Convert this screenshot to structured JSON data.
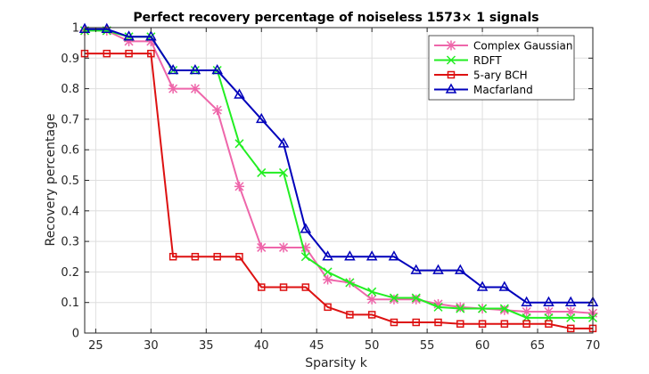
{
  "chart_data": {
    "type": "line",
    "title": "Perfect recovery percentage of noiseless 1573× 1 signals",
    "xlabel": "Sparsity k",
    "ylabel": "Recovery percentage",
    "xlim": [
      24,
      70
    ],
    "ylim": [
      0,
      1
    ],
    "xticks": [
      25,
      30,
      35,
      40,
      45,
      50,
      55,
      60,
      65,
      70
    ],
    "yticks": [
      0,
      0.1,
      0.2,
      0.3,
      0.4,
      0.5,
      0.6,
      0.7,
      0.8,
      0.9,
      1
    ],
    "x": [
      24,
      26,
      28,
      30,
      32,
      34,
      36,
      38,
      40,
      42,
      44,
      46,
      48,
      50,
      52,
      54,
      56,
      58,
      60,
      62,
      64,
      66,
      68,
      70
    ],
    "grid": true,
    "legend_position": "top-right",
    "series": [
      {
        "name": "Complex Gaussian",
        "color": "#ee66aa",
        "marker": "asterisk",
        "values": [
          0.99,
          0.99,
          0.955,
          0.955,
          0.8,
          0.8,
          0.73,
          0.48,
          0.28,
          0.28,
          0.28,
          0.175,
          0.165,
          0.11,
          0.11,
          0.11,
          0.095,
          0.085,
          0.08,
          0.075,
          0.07,
          0.07,
          0.07,
          0.065
        ]
      },
      {
        "name": "RDFT",
        "color": "#22ee22",
        "marker": "x",
        "values": [
          0.99,
          0.99,
          0.97,
          0.97,
          0.86,
          0.86,
          0.86,
          0.62,
          0.525,
          0.525,
          0.25,
          0.2,
          0.165,
          0.135,
          0.115,
          0.115,
          0.085,
          0.08,
          0.08,
          0.08,
          0.05,
          0.05,
          0.05,
          0.05
        ]
      },
      {
        "name": "5-ary BCH",
        "color": "#dd1111",
        "marker": "square",
        "values": [
          0.915,
          0.915,
          0.915,
          0.915,
          0.25,
          0.25,
          0.25,
          0.25,
          0.15,
          0.15,
          0.15,
          0.085,
          0.06,
          0.06,
          0.035,
          0.035,
          0.035,
          0.03,
          0.03,
          0.03,
          0.03,
          0.03,
          0.015,
          0.015
        ]
      },
      {
        "name": "Macfarland",
        "color": "#0000bb",
        "marker": "triangle",
        "values": [
          0.995,
          0.995,
          0.97,
          0.97,
          0.86,
          0.86,
          0.86,
          0.78,
          0.7,
          0.62,
          0.34,
          0.25,
          0.25,
          0.25,
          0.25,
          0.205,
          0.205,
          0.205,
          0.15,
          0.15,
          0.1,
          0.1,
          0.1,
          0.1
        ]
      }
    ]
  }
}
